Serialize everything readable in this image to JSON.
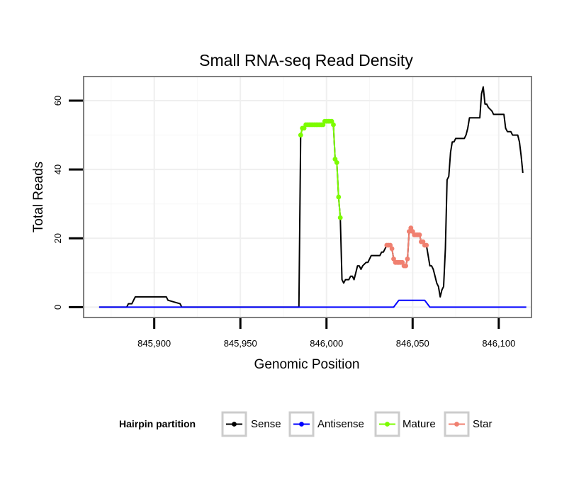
{
  "chart_data": {
    "type": "line",
    "title": "Small RNA-seq Read Density",
    "xlabel": "Genomic Position",
    "ylabel": "Total Reads",
    "xlim": [
      845859,
      846119
    ],
    "ylim": [
      -3,
      67
    ],
    "x_ticks": [
      845900,
      845950,
      846000,
      846050,
      846100
    ],
    "x_tick_labels": [
      "845,900",
      "845,950",
      "846,000",
      "846,050",
      "846,100"
    ],
    "y_ticks": [
      0,
      20,
      40,
      60
    ],
    "y_tick_labels": [
      "0",
      "20",
      "40",
      "60"
    ],
    "grid": true,
    "legend": {
      "title": "Hairpin partition",
      "position": "bottom",
      "entries": [
        {
          "name": "Sense",
          "color": "#000000"
        },
        {
          "name": "Antisense",
          "color": "#0000ff"
        },
        {
          "name": "Mature",
          "color": "#7cfc00"
        },
        {
          "name": "Star",
          "color": "#f08070"
        }
      ]
    },
    "series": [
      {
        "name": "Sense",
        "color": "#000000",
        "markers": false,
        "points": [
          [
            845868,
            0
          ],
          [
            845884,
            0
          ],
          [
            845885,
            1
          ],
          [
            845887,
            1
          ],
          [
            845888,
            2
          ],
          [
            845889,
            3
          ],
          [
            845890,
            3
          ],
          [
            845907,
            3
          ],
          [
            845908,
            2
          ],
          [
            845915,
            1
          ],
          [
            845916,
            0
          ],
          [
            845984,
            0
          ],
          [
            845985,
            50
          ],
          [
            845986,
            52
          ],
          [
            845988,
            53
          ],
          [
            845990,
            53
          ],
          [
            845998,
            53
          ],
          [
            845999,
            54
          ],
          [
            846003,
            54
          ],
          [
            846004,
            53
          ],
          [
            846005,
            43
          ],
          [
            846006,
            42
          ],
          [
            846007,
            32
          ],
          [
            846008,
            26
          ],
          [
            846009,
            8
          ],
          [
            846010,
            7
          ],
          [
            846011,
            8
          ],
          [
            846013,
            8
          ],
          [
            846014,
            9
          ],
          [
            846015,
            9
          ],
          [
            846016,
            8
          ],
          [
            846017,
            10
          ],
          [
            846018,
            12
          ],
          [
            846019,
            12
          ],
          [
            846020,
            11
          ],
          [
            846021,
            12
          ],
          [
            846023,
            13
          ],
          [
            846024,
            13
          ],
          [
            846025,
            14
          ],
          [
            846026,
            15
          ],
          [
            846031,
            15
          ],
          [
            846032,
            16
          ],
          [
            846033,
            16
          ],
          [
            846034,
            17
          ],
          [
            846035,
            18
          ],
          [
            846037,
            18
          ],
          [
            846038,
            17
          ],
          [
            846039,
            14
          ],
          [
            846040,
            13
          ],
          [
            846044,
            13
          ],
          [
            846045,
            12
          ],
          [
            846046,
            12
          ],
          [
            846047,
            14
          ],
          [
            846048,
            22
          ],
          [
            846049,
            23
          ],
          [
            846050,
            22
          ],
          [
            846051,
            21
          ],
          [
            846054,
            21
          ],
          [
            846055,
            19
          ],
          [
            846056,
            19
          ],
          [
            846057,
            18
          ],
          [
            846058,
            18
          ],
          [
            846059,
            15
          ],
          [
            846060,
            12
          ],
          [
            846061,
            12
          ],
          [
            846062,
            11
          ],
          [
            846063,
            9
          ],
          [
            846064,
            7
          ],
          [
            846065,
            6
          ],
          [
            846066,
            3
          ],
          [
            846067,
            5
          ],
          [
            846068,
            6
          ],
          [
            846069,
            17
          ],
          [
            846070,
            37
          ],
          [
            846071,
            38
          ],
          [
            846072,
            45
          ],
          [
            846073,
            48
          ],
          [
            846074,
            48
          ],
          [
            846075,
            49
          ],
          [
            846080,
            49
          ],
          [
            846081,
            50
          ],
          [
            846082,
            52
          ],
          [
            846083,
            55
          ],
          [
            846089,
            55
          ],
          [
            846090,
            62
          ],
          [
            846091,
            64
          ],
          [
            846092,
            59
          ],
          [
            846093,
            59
          ],
          [
            846094,
            58
          ],
          [
            846096,
            57
          ],
          [
            846097,
            56
          ],
          [
            846103,
            56
          ],
          [
            846104,
            52
          ],
          [
            846105,
            51
          ],
          [
            846107,
            51
          ],
          [
            846108,
            50
          ],
          [
            846111,
            50
          ],
          [
            846112,
            48
          ],
          [
            846113,
            44
          ],
          [
            846114,
            39
          ]
        ]
      },
      {
        "name": "Antisense",
        "color": "#0000ff",
        "markers": false,
        "points": [
          [
            845868,
            0
          ],
          [
            846039,
            0
          ],
          [
            846042,
            2
          ],
          [
            846057,
            2
          ],
          [
            846060,
            0
          ],
          [
            846116,
            0
          ]
        ]
      },
      {
        "name": "Mature",
        "color": "#7cfc00",
        "markers": true,
        "points": [
          [
            845985,
            50
          ],
          [
            845986,
            52
          ],
          [
            845987,
            52
          ],
          [
            845988,
            53
          ],
          [
            845989,
            53
          ],
          [
            845990,
            53
          ],
          [
            845991,
            53
          ],
          [
            845992,
            53
          ],
          [
            845993,
            53
          ],
          [
            845994,
            53
          ],
          [
            845995,
            53
          ],
          [
            845996,
            53
          ],
          [
            845997,
            53
          ],
          [
            845998,
            53
          ],
          [
            845999,
            54
          ],
          [
            846000,
            54
          ],
          [
            846001,
            54
          ],
          [
            846002,
            54
          ],
          [
            846003,
            54
          ],
          [
            846004,
            53
          ],
          [
            846005,
            43
          ],
          [
            846006,
            42
          ],
          [
            846007,
            32
          ],
          [
            846008,
            26
          ]
        ]
      },
      {
        "name": "Star",
        "color": "#f08070",
        "markers": true,
        "points": [
          [
            846035,
            18
          ],
          [
            846036,
            18
          ],
          [
            846037,
            18
          ],
          [
            846038,
            17
          ],
          [
            846039,
            14
          ],
          [
            846040,
            13
          ],
          [
            846041,
            13
          ],
          [
            846042,
            13
          ],
          [
            846043,
            13
          ],
          [
            846044,
            13
          ],
          [
            846045,
            12
          ],
          [
            846046,
            12
          ],
          [
            846047,
            14
          ],
          [
            846048,
            22
          ],
          [
            846049,
            23
          ],
          [
            846050,
            22
          ],
          [
            846051,
            21
          ],
          [
            846052,
            21
          ],
          [
            846053,
            21
          ],
          [
            846054,
            21
          ],
          [
            846055,
            19
          ],
          [
            846056,
            19
          ],
          [
            846057,
            18
          ],
          [
            846058,
            18
          ]
        ]
      }
    ]
  }
}
